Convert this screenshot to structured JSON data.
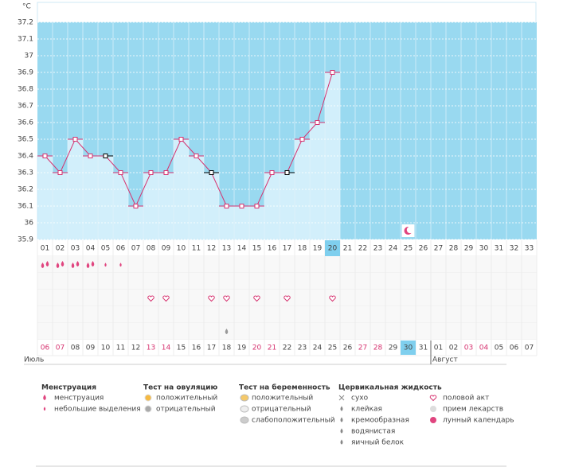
{
  "chart_data": {
    "type": "line",
    "y_unit": "°C",
    "categories": [
      "01",
      "02",
      "03",
      "04",
      "05",
      "06",
      "07",
      "08",
      "09",
      "10",
      "11",
      "12",
      "13",
      "14",
      "15",
      "16",
      "17",
      "18",
      "19",
      "20",
      "21",
      "22",
      "23",
      "24",
      "25",
      "26",
      "27",
      "28",
      "29",
      "30",
      "31",
      "32",
      "33"
    ],
    "series": [
      {
        "color": "#d6326f",
        "values": [
          36.4,
          36.3,
          36.5,
          36.4,
          36.4,
          36.3,
          36.1,
          36.3,
          36.3,
          36.5,
          36.4,
          36.3,
          36.1,
          36.1,
          36.1,
          36.3,
          36.3,
          36.5,
          36.6,
          36.9,
          null,
          null,
          null,
          null,
          null,
          null,
          null,
          null,
          null,
          null,
          null,
          null,
          null
        ]
      }
    ],
    "alt_marker_days": [
      5,
      12,
      17
    ],
    "alt_marker_color": "#000000",
    "ylim": [
      35.9,
      37.2
    ],
    "yticks": [
      35.9,
      36,
      36.1,
      36.2,
      36.3,
      36.4,
      36.5,
      36.6,
      36.7,
      36.8,
      36.9,
      37,
      37.1,
      37.2
    ],
    "grid": true,
    "background_color": "#99d9f0",
    "bar_color": "#d2effb",
    "highlight_day": 20,
    "moon_days": [
      25
    ],
    "menstruation_heavy_days": [
      1,
      2,
      3,
      4
    ],
    "menstruation_light_days": [
      5,
      6
    ],
    "sex_days": [
      8,
      9,
      12,
      13,
      15,
      17,
      20
    ],
    "watery_fluid_days": [
      13
    ],
    "dates": [
      {
        "label": "06",
        "weekend": true
      },
      {
        "label": "07",
        "weekend": true
      },
      {
        "label": "08",
        "weekend": false
      },
      {
        "label": "09",
        "weekend": false
      },
      {
        "label": "10",
        "weekend": false
      },
      {
        "label": "11",
        "weekend": false
      },
      {
        "label": "12",
        "weekend": false
      },
      {
        "label": "13",
        "weekend": true
      },
      {
        "label": "14",
        "weekend": true
      },
      {
        "label": "15",
        "weekend": false
      },
      {
        "label": "16",
        "weekend": false
      },
      {
        "label": "17",
        "weekend": false
      },
      {
        "label": "18",
        "weekend": false
      },
      {
        "label": "19",
        "weekend": false
      },
      {
        "label": "20",
        "weekend": true
      },
      {
        "label": "21",
        "weekend": true
      },
      {
        "label": "22",
        "weekend": false
      },
      {
        "label": "23",
        "weekend": false
      },
      {
        "label": "24",
        "weekend": false
      },
      {
        "label": "25",
        "weekend": false
      },
      {
        "label": "26",
        "weekend": false
      },
      {
        "label": "27",
        "weekend": true
      },
      {
        "label": "28",
        "weekend": true
      },
      {
        "label": "29",
        "weekend": false
      },
      {
        "label": "30",
        "weekend": false
      },
      {
        "label": "31",
        "weekend": false
      },
      {
        "label": "01",
        "weekend": false
      },
      {
        "label": "02",
        "weekend": false
      },
      {
        "label": "03",
        "weekend": true
      },
      {
        "label": "04",
        "weekend": true
      },
      {
        "label": "05",
        "weekend": false
      },
      {
        "label": "06",
        "weekend": false
      },
      {
        "label": "07",
        "weekend": false
      }
    ],
    "months": [
      {
        "label": "Июль",
        "start": 1
      },
      {
        "label": "Август",
        "start": 27
      }
    ]
  },
  "legend": [
    {
      "title": "Менструация",
      "items": [
        "менструация",
        "небольшие выделения"
      ]
    },
    {
      "title": "Тест на овуляцию",
      "items": [
        "положительный",
        "отрицательный"
      ]
    },
    {
      "title": "Тест на беременность",
      "items": [
        "положительный",
        "отрицательный",
        "слабоположительный"
      ]
    },
    {
      "title": "Цервикальная жидкость",
      "items": [
        "сухо",
        "клейкая",
        "кремообразная",
        "водянистая",
        "яичный белок"
      ]
    },
    {
      "items": [
        "половой акт",
        "прием лекарств",
        "лунный календарь"
      ]
    }
  ]
}
